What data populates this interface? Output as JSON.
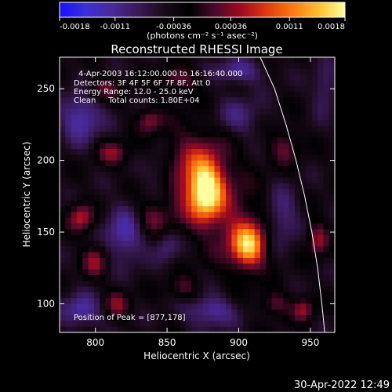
{
  "colorbar": {
    "min": -0.0018,
    "max": 0.0018,
    "tick_labels": [
      "-0.0018",
      "-0.0011",
      "-0.00036",
      "0.00036",
      "0.0011",
      "0.0018"
    ],
    "tick_values": [
      -0.0018,
      -0.0011,
      -0.00036,
      0.00036,
      0.0011,
      0.0018
    ],
    "unit_label": "(photons cm⁻² s⁻¹ asec⁻²)",
    "colors": [
      "#1a10ff",
      "#3a2fd8",
      "#4a2a9a",
      "#3a1a5a",
      "#1a0a1a",
      "#000000",
      "#4a0a2a",
      "#a00a20",
      "#e03a10",
      "#ff7a10",
      "#ffc030",
      "#ffffa0"
    ]
  },
  "chart_data": {
    "type": "heatmap",
    "title": "Reconstructed RHESSI Image",
    "xlabel": "Heliocentric X (arcsec)",
    "ylabel": "Heliocentric Y (arcsec)",
    "xlim": [
      775,
      967
    ],
    "ylim": [
      80,
      272
    ],
    "xticks": [
      800,
      850,
      900,
      950
    ],
    "yticks": [
      100,
      150,
      200,
      250
    ],
    "annotations": [
      "4-Apr-2003 16:12:00.000 to 16:16:40.000",
      "Detectors: 3F 4F 5F 6F 7F 8F, Att 0",
      "Energy Range: 12.0 - 25.0 keV",
      "Clean     Total counts: 1.80E+04"
    ],
    "peak_label": "Position of Peak = [877,178]",
    "peak": [
      877,
      178
    ],
    "sources": [
      {
        "x": 877,
        "y": 178,
        "intensity": 1.0,
        "sx": 8,
        "sy": 14
      },
      {
        "x": 870,
        "y": 190,
        "intensity": 0.55,
        "sx": 18,
        "sy": 22
      },
      {
        "x": 907,
        "y": 140,
        "intensity": 0.85,
        "sx": 8,
        "sy": 10
      },
      {
        "x": 900,
        "y": 150,
        "intensity": 0.35,
        "sx": 14,
        "sy": 20
      },
      {
        "x": 790,
        "y": 160,
        "intensity": 0.55,
        "sx": 6,
        "sy": 7
      },
      {
        "x": 800,
        "y": 130,
        "intensity": 0.45,
        "sx": 6,
        "sy": 8
      },
      {
        "x": 812,
        "y": 205,
        "intensity": 0.4,
        "sx": 8,
        "sy": 6
      },
      {
        "x": 838,
        "y": 228,
        "intensity": 0.4,
        "sx": 6,
        "sy": 6
      },
      {
        "x": 815,
        "y": 100,
        "intensity": 0.4,
        "sx": 6,
        "sy": 7
      },
      {
        "x": 840,
        "y": 160,
        "intensity": 0.35,
        "sx": 8,
        "sy": 8
      },
      {
        "x": 932,
        "y": 210,
        "intensity": 0.35,
        "sx": 7,
        "sy": 9
      },
      {
        "x": 955,
        "y": 145,
        "intensity": 0.5,
        "sx": 5,
        "sy": 8
      },
      {
        "x": 945,
        "y": 96,
        "intensity": 0.45,
        "sx": 5,
        "sy": 6
      },
      {
        "x": 862,
        "y": 110,
        "intensity": 0.3,
        "sx": 8,
        "sy": 6
      },
      {
        "x": 925,
        "y": 100,
        "intensity": 0.35,
        "sx": 7,
        "sy": 6
      },
      {
        "x": 805,
        "y": 250,
        "intensity": 0.35,
        "sx": 8,
        "sy": 6
      },
      {
        "x": 858,
        "y": 256,
        "intensity": 0.35,
        "sx": 10,
        "sy": 6
      },
      {
        "x": 820,
        "y": 148,
        "intensity": -0.45,
        "sx": 10,
        "sy": 14
      },
      {
        "x": 790,
        "y": 230,
        "intensity": -0.5,
        "sx": 10,
        "sy": 12
      },
      {
        "x": 845,
        "y": 190,
        "intensity": -0.3,
        "sx": 8,
        "sy": 12
      },
      {
        "x": 900,
        "y": 230,
        "intensity": -0.3,
        "sx": 12,
        "sy": 10
      },
      {
        "x": 930,
        "y": 160,
        "intensity": -0.35,
        "sx": 8,
        "sy": 14
      },
      {
        "x": 880,
        "y": 95,
        "intensity": -0.45,
        "sx": 12,
        "sy": 8
      },
      {
        "x": 790,
        "y": 95,
        "intensity": -0.45,
        "sx": 10,
        "sy": 8
      },
      {
        "x": 900,
        "y": 262,
        "intensity": -0.4,
        "sx": 12,
        "sy": 6
      },
      {
        "x": 850,
        "y": 140,
        "intensity": -0.3,
        "sx": 6,
        "sy": 8
      },
      {
        "x": 960,
        "y": 250,
        "intensity": -0.3,
        "sx": 6,
        "sy": 12
      }
    ],
    "limb": [
      [
        915,
        272
      ],
      [
        925,
        250
      ],
      [
        933,
        225
      ],
      [
        940,
        200
      ],
      [
        946,
        175
      ],
      [
        951,
        150
      ],
      [
        955,
        125
      ],
      [
        958,
        100
      ],
      [
        960,
        80
      ]
    ]
  },
  "timestamp": "30-Apr-2022 12:49"
}
